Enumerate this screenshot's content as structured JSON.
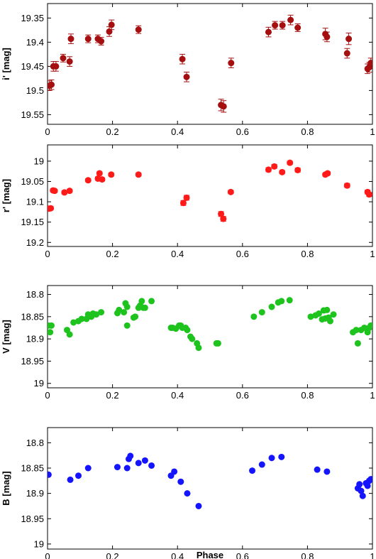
{
  "chart_data": [
    {
      "type": "scatter",
      "ylabel": "i' [mag]",
      "xlabel": "",
      "xlim": [
        0,
        1
      ],
      "ylim": [
        19.57,
        19.32
      ],
      "y_inverted": true,
      "color": "#a50f0f",
      "error_bars": true,
      "xticks": [
        "0",
        "0.2",
        "0.4",
        "0.6",
        "0.8",
        "1"
      ],
      "yticks": [
        "19.35",
        "19.4",
        "19.45",
        "19.5",
        "19.55"
      ],
      "ytick_values": [
        19.35,
        19.4,
        19.45,
        19.5,
        19.55
      ],
      "series": [
        {
          "x": [
            0.006,
            0.012,
            0.018,
            0.026,
            0.048,
            0.068,
            0.072,
            0.125,
            0.155,
            0.165,
            0.19,
            0.197,
            0.28,
            0.415,
            0.428,
            0.534,
            0.542,
            0.565,
            0.68,
            0.7,
            0.723,
            0.748,
            0.77,
            0.855,
            0.86,
            0.922,
            0.927,
            0.985,
            0.99,
            0.995
          ],
          "y": [
            19.49,
            19.488,
            19.45,
            19.45,
            19.433,
            19.44,
            19.393,
            19.393,
            19.393,
            19.398,
            19.378,
            19.364,
            19.374,
            19.435,
            19.472,
            19.53,
            19.533,
            19.443,
            19.379,
            19.365,
            19.365,
            19.354,
            19.37,
            19.383,
            19.389,
            19.423,
            19.393,
            19.455,
            19.452,
            19.443
          ],
          "err": [
            0.01,
            0.01,
            0.01,
            0.01,
            0.008,
            0.01,
            0.01,
            0.008,
            0.008,
            0.008,
            0.01,
            0.01,
            0.008,
            0.01,
            0.01,
            0.012,
            0.012,
            0.01,
            0.01,
            0.008,
            0.008,
            0.01,
            0.008,
            0.012,
            0.01,
            0.01,
            0.012,
            0.01,
            0.01,
            0.01
          ]
        }
      ]
    },
    {
      "type": "scatter",
      "ylabel": "r' [mag]",
      "xlabel": "",
      "xlim": [
        0,
        1
      ],
      "ylim": [
        19.21,
        18.96
      ],
      "y_inverted": true,
      "color": "#ff1a1a",
      "error_bars": true,
      "xticks": [
        "0",
        "0.2",
        "0.4",
        "0.6",
        "0.8",
        "1"
      ],
      "yticks": [
        "19",
        "19.05",
        "19.1",
        "19.15",
        "19.2"
      ],
      "ytick_values": [
        19.0,
        19.05,
        19.1,
        19.15,
        19.2
      ],
      "series": [
        {
          "x": [
            0.004,
            0.01,
            0.017,
            0.022,
            0.052,
            0.068,
            0.125,
            0.155,
            0.16,
            0.168,
            0.196,
            0.28,
            0.418,
            0.428,
            0.534,
            0.541,
            0.564,
            0.68,
            0.698,
            0.722,
            0.746,
            0.77,
            0.855,
            0.862,
            0.922,
            0.985,
            0.99
          ],
          "y": [
            19.117,
            19.116,
            19.072,
            19.073,
            19.077,
            19.073,
            19.047,
            19.043,
            19.03,
            19.045,
            19.033,
            19.033,
            19.103,
            19.09,
            19.13,
            19.142,
            19.076,
            19.021,
            19.013,
            19.027,
            19.004,
            19.022,
            19.033,
            19.03,
            19.06,
            19.076,
            19.082
          ],
          "err": [
            0.004,
            0.004,
            0.004,
            0.004,
            0.004,
            0.004,
            0.004,
            0.004,
            0.004,
            0.004,
            0.004,
            0.004,
            0.006,
            0.006,
            0.006,
            0.006,
            0.004,
            0.005,
            0.005,
            0.004,
            0.004,
            0.005,
            0.004,
            0.004,
            0.005,
            0.005,
            0.005
          ]
        }
      ]
    },
    {
      "type": "scatter",
      "ylabel": "V [mag]",
      "xlabel": "",
      "xlim": [
        0,
        1
      ],
      "ylim": [
        19.01,
        18.78
      ],
      "y_inverted": true,
      "color": "#1ec31e",
      "error_bars": false,
      "xticks": [
        "0",
        "0.2",
        "0.4",
        "0.6",
        "0.8",
        "1"
      ],
      "yticks": [
        "18.8",
        "18.85",
        "18.9",
        "18.95",
        "19"
      ],
      "ytick_values": [
        18.8,
        18.85,
        18.9,
        18.95,
        19.0
      ],
      "series": [
        {
          "x": [
            0.003,
            0.008,
            0.012,
            0.06,
            0.068,
            0.08,
            0.095,
            0.105,
            0.12,
            0.125,
            0.135,
            0.14,
            0.15,
            0.165,
            0.215,
            0.22,
            0.235,
            0.24,
            0.245,
            0.245,
            0.265,
            0.27,
            0.28,
            0.285,
            0.29,
            0.295,
            0.3,
            0.32,
            0.38,
            0.385,
            0.395,
            0.405,
            0.41,
            0.415,
            0.425,
            0.43,
            0.44,
            0.445,
            0.46,
            0.465,
            0.52,
            0.525,
            0.635,
            0.66,
            0.69,
            0.71,
            0.72,
            0.745,
            0.81,
            0.825,
            0.835,
            0.845,
            0.85,
            0.855,
            0.86,
            0.865,
            0.87,
            0.88,
            0.94,
            0.95,
            0.955,
            0.965,
            0.975,
            0.985,
            0.99,
            0.995
          ],
          "y": [
            18.87,
            18.885,
            18.87,
            18.88,
            18.89,
            18.863,
            18.86,
            18.855,
            18.855,
            18.845,
            18.85,
            18.843,
            18.845,
            18.84,
            18.842,
            18.835,
            18.84,
            18.82,
            18.828,
            18.87,
            18.852,
            18.85,
            18.83,
            18.825,
            18.815,
            18.83,
            18.83,
            18.815,
            18.875,
            18.875,
            18.877,
            18.87,
            18.87,
            18.875,
            18.875,
            18.88,
            18.895,
            18.9,
            18.91,
            18.92,
            18.91,
            18.91,
            18.85,
            18.84,
            18.828,
            18.818,
            18.815,
            18.813,
            18.85,
            18.847,
            18.843,
            18.856,
            18.836,
            18.854,
            18.835,
            18.852,
            18.86,
            18.845,
            18.885,
            18.88,
            18.91,
            18.88,
            18.875,
            18.885,
            18.875,
            18.87
          ]
        }
      ]
    },
    {
      "type": "scatter",
      "ylabel": "B [mag]",
      "xlabel": "Phase",
      "xlim": [
        0,
        1
      ],
      "ylim": [
        19.01,
        18.77
      ],
      "y_inverted": true,
      "color": "#1414ff",
      "error_bars": false,
      "xticks": [
        "0",
        "0.2",
        "0.4",
        "0.6",
        "0.8",
        "1"
      ],
      "yticks": [
        "18.8",
        "18.85",
        "18.9",
        "18.95",
        "19"
      ],
      "ytick_values": [
        18.8,
        18.85,
        18.9,
        18.95,
        19.0
      ],
      "series": [
        {
          "x": [
            0.003,
            0.07,
            0.095,
            0.125,
            0.215,
            0.245,
            0.25,
            0.255,
            0.28,
            0.3,
            0.32,
            0.38,
            0.39,
            0.41,
            0.43,
            0.465,
            0.63,
            0.66,
            0.69,
            0.72,
            0.83,
            0.86,
            0.955,
            0.96,
            0.965,
            0.97,
            0.98,
            0.985,
            0.99,
            0.995
          ],
          "y": [
            18.863,
            18.873,
            18.865,
            18.85,
            18.848,
            18.85,
            18.832,
            18.826,
            18.84,
            18.835,
            18.845,
            18.865,
            18.857,
            18.877,
            18.9,
            18.925,
            18.855,
            18.843,
            18.83,
            18.828,
            18.853,
            18.857,
            18.89,
            18.882,
            18.895,
            18.905,
            18.88,
            18.885,
            18.875,
            18.872
          ]
        }
      ]
    }
  ]
}
